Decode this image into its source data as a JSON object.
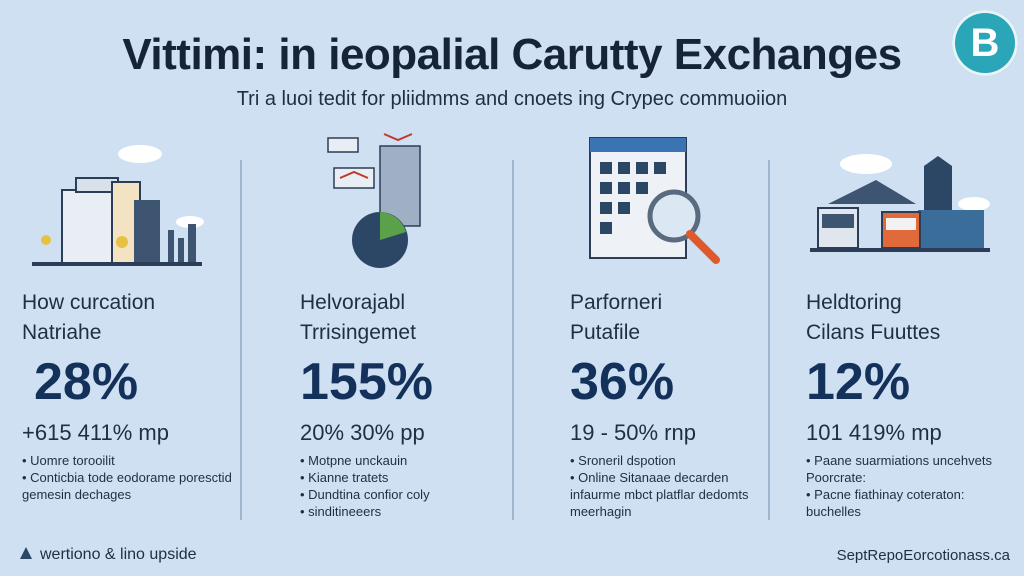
{
  "header": {
    "title": "Vittimi: in ieopalial Carutty Exchanges",
    "subtitle": "Tri a luoi tedit for pliidmms and cnoets ing Crypec commuoiion",
    "logo_letter": "B"
  },
  "columns": [
    {
      "label_line1": "How curcation",
      "label_line2": "Natriahe",
      "percent": "28%",
      "range": "+615 411% mp",
      "bullets": [
        "Uomre torooilit",
        "Conticbia tode eodorame poresctid gemesin dechages"
      ]
    },
    {
      "label_line1": "Helvorajabl",
      "label_line2": "Trrisingemet",
      "percent": "155%",
      "range": "20% 30% pp",
      "bullets": [
        "Motpne unckauin",
        "Kianne tratets",
        "Dundtina confior coly",
        "sinditineeers"
      ]
    },
    {
      "label_line1": "Parforneri",
      "label_line2": "Putafile",
      "percent": "36%",
      "range": "19 - 50% rnp",
      "bullets": [
        "Sroneril dspotion",
        "Online Sitanaae decarden infaurme mbct platflar dedomts meerhagin"
      ]
    },
    {
      "label_line1": "Heldtoring",
      "label_line2": "Cilans Fuuttes",
      "percent": "12%",
      "range": "101 419% mp",
      "bullets": [
        "Paane suarmiations uncehvets Poorcrate:",
        "Pacne fiathinay coteraton: buchelles"
      ]
    }
  ],
  "footer": {
    "left_text": "wertiono & lino upside",
    "right_text": "SeptRepoEorcotionass.ca"
  },
  "colors": {
    "background": "#cfe0f2",
    "accent_dark": "#13315a",
    "logo": "#2aa6b8",
    "orange": "#e0592a"
  }
}
